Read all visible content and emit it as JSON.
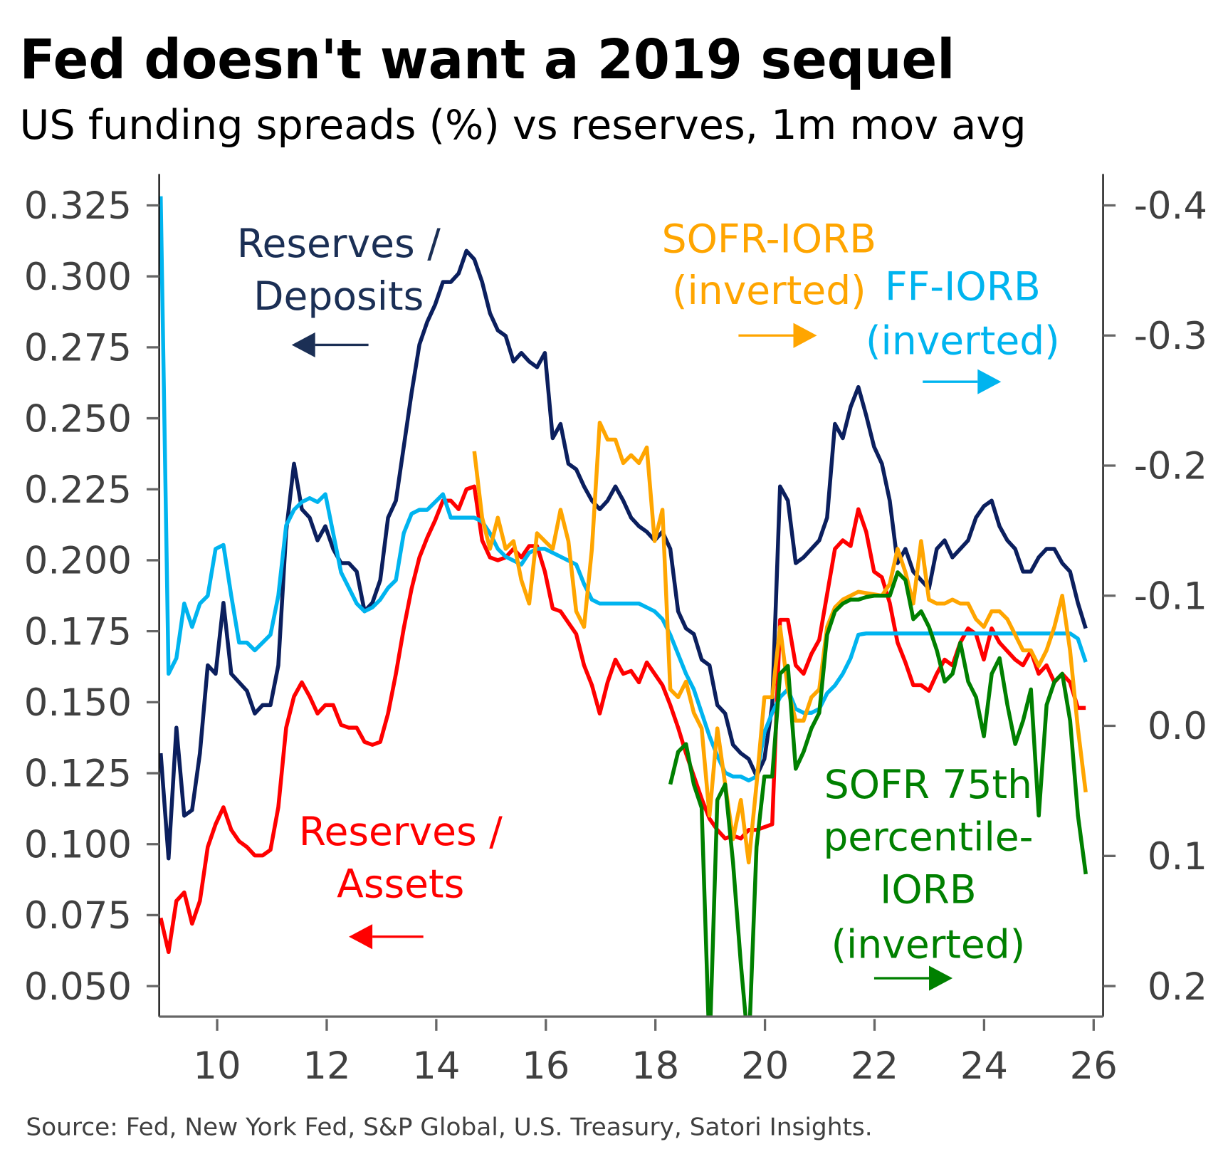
{
  "chart_data": {
    "type": "line",
    "title": "Fed doesn't want a 2019 sequel",
    "subtitle": "US funding spreads (%) vs reserves, 1m mov avg",
    "source": "Source: Fed, New York Fed, S&P Global, U.S. Treasury, Satori Insights.",
    "x_axis": {
      "ticks": [
        10,
        12,
        14,
        16,
        18,
        20,
        22,
        24,
        26
      ],
      "tick_labels": [
        "10",
        "12",
        "14",
        "16",
        "18",
        "20",
        "22",
        "24",
        "26"
      ],
      "range": [
        8.94,
        26.17
      ]
    },
    "left_axis": {
      "ticks": [
        0.325,
        0.3,
        0.275,
        0.25,
        0.225,
        0.2,
        0.175,
        0.15,
        0.125,
        0.1,
        0.075,
        0.05
      ],
      "tick_labels": [
        "0.325",
        "0.300",
        "0.275",
        "0.250",
        "0.225",
        "0.200",
        "0.175",
        "0.150",
        "0.125",
        "0.100",
        "0.075",
        "0.050"
      ],
      "range": [
        0.039,
        0.336
      ]
    },
    "right_axis": {
      "inverted": true,
      "ticks": [
        -0.4,
        -0.3,
        -0.2,
        -0.1,
        0.0,
        0.1,
        0.2
      ],
      "tick_labels": [
        "-0.4",
        "-0.3",
        "-0.2",
        "-0.1",
        "0.0",
        "0.1",
        "0.2"
      ],
      "range": [
        -0.424,
        0.223
      ]
    },
    "grid": false,
    "series": [
      {
        "name": "Reserves / Deposits",
        "axis": "left",
        "color": "#0b1f5e",
        "x_start": 8.97,
        "x_step": 0.1431,
        "values": [
          0.132,
          0.095,
          0.141,
          0.11,
          0.112,
          0.132,
          0.163,
          0.16,
          0.185,
          0.16,
          0.157,
          0.154,
          0.146,
          0.149,
          0.149,
          0.163,
          0.21,
          0.234,
          0.218,
          0.215,
          0.207,
          0.212,
          0.204,
          0.199,
          0.199,
          0.196,
          0.182,
          0.185,
          0.193,
          0.215,
          0.221,
          0.24,
          0.259,
          0.276,
          0.284,
          0.29,
          0.298,
          0.298,
          0.301,
          0.309,
          0.306,
          0.298,
          0.287,
          0.281,
          0.279,
          0.27,
          0.273,
          0.27,
          0.268,
          0.273,
          0.243,
          0.248,
          0.234,
          0.232,
          0.226,
          0.221,
          0.218,
          0.221,
          0.226,
          0.221,
          0.215,
          0.212,
          0.21,
          0.207,
          0.21,
          0.204,
          0.182,
          0.176,
          0.174,
          0.165,
          0.163,
          0.149,
          0.146,
          0.135,
          0.132,
          0.13,
          0.124,
          0.13,
          0.149,
          0.226,
          0.221,
          0.199,
          0.201,
          0.204,
          0.207,
          0.215,
          0.248,
          0.243,
          0.254,
          0.261,
          0.251,
          0.24,
          0.234,
          0.221,
          0.199,
          0.204,
          0.196,
          0.193,
          0.19,
          0.204,
          0.207,
          0.201,
          0.204,
          0.207,
          0.215,
          0.219,
          0.221,
          0.212,
          0.207,
          0.204,
          0.196,
          0.196,
          0.201,
          0.204,
          0.204,
          0.199,
          0.196,
          0.185,
          0.176
        ]
      },
      {
        "name": "Reserves / Assets",
        "axis": "left",
        "color": "#ff0000",
        "x_start": 8.97,
        "x_step": 0.1431,
        "values": [
          0.074,
          0.062,
          0.08,
          0.083,
          0.072,
          0.08,
          0.099,
          0.107,
          0.113,
          0.105,
          0.101,
          0.099,
          0.096,
          0.096,
          0.098,
          0.113,
          0.141,
          0.152,
          0.157,
          0.152,
          0.146,
          0.149,
          0.149,
          0.142,
          0.141,
          0.141,
          0.136,
          0.135,
          0.136,
          0.146,
          0.16,
          0.176,
          0.19,
          0.201,
          0.208,
          0.214,
          0.221,
          0.221,
          0.218,
          0.225,
          0.226,
          0.207,
          0.201,
          0.2,
          0.201,
          0.204,
          0.201,
          0.205,
          0.205,
          0.196,
          0.183,
          0.182,
          0.178,
          0.174,
          0.163,
          0.156,
          0.146,
          0.157,
          0.165,
          0.16,
          0.161,
          0.157,
          0.164,
          0.16,
          0.156,
          0.149,
          0.141,
          0.132,
          0.124,
          0.116,
          0.109,
          0.105,
          0.102,
          0.103,
          0.102,
          0.105,
          0.105,
          0.106,
          0.107,
          0.179,
          0.179,
          0.163,
          0.16,
          0.167,
          0.172,
          0.188,
          0.204,
          0.207,
          0.205,
          0.218,
          0.21,
          0.196,
          0.194,
          0.185,
          0.171,
          0.164,
          0.156,
          0.156,
          0.154,
          0.16,
          0.165,
          0.163,
          0.171,
          0.176,
          0.174,
          0.165,
          0.176,
          0.171,
          0.168,
          0.165,
          0.163,
          0.168,
          0.16,
          0.163,
          0.157,
          0.16,
          0.157,
          0.148,
          0.148
        ]
      },
      {
        "name": "FF-IORB (inverted)",
        "axis": "right",
        "color": "#00b4ef",
        "x_start": 8.97,
        "x_step": 0.1431,
        "values": [
          -0.407,
          -0.04,
          -0.052,
          -0.094,
          -0.076,
          -0.094,
          -0.1,
          -0.136,
          -0.139,
          -0.1,
          -0.064,
          -0.064,
          -0.058,
          -0.064,
          -0.07,
          -0.1,
          -0.154,
          -0.166,
          -0.172,
          -0.175,
          -0.172,
          -0.178,
          -0.148,
          -0.118,
          -0.106,
          -0.094,
          -0.088,
          -0.091,
          -0.097,
          -0.106,
          -0.112,
          -0.148,
          -0.163,
          -0.166,
          -0.166,
          -0.172,
          -0.178,
          -0.16,
          -0.16,
          -0.16,
          -0.16,
          -0.157,
          -0.148,
          -0.136,
          -0.13,
          -0.127,
          -0.124,
          -0.133,
          -0.136,
          -0.136,
          -0.133,
          -0.13,
          -0.127,
          -0.124,
          -0.109,
          -0.097,
          -0.094,
          -0.094,
          -0.094,
          -0.094,
          -0.094,
          -0.094,
          -0.091,
          -0.088,
          -0.082,
          -0.07,
          -0.055,
          -0.04,
          -0.028,
          -0.01,
          0.008,
          0.023,
          0.036,
          0.039,
          0.039,
          0.042,
          0.039,
          0.005,
          -0.01,
          -0.022,
          -0.028,
          -0.013,
          -0.01,
          -0.01,
          -0.013,
          -0.025,
          -0.031,
          -0.04,
          -0.052,
          -0.07,
          -0.071,
          -0.071,
          -0.071,
          -0.071,
          -0.071,
          -0.071,
          -0.071,
          -0.071,
          -0.071,
          -0.071,
          -0.071,
          -0.071,
          -0.071,
          -0.071,
          -0.071,
          -0.071,
          -0.071,
          -0.071,
          -0.071,
          -0.071,
          -0.071,
          -0.071,
          -0.071,
          -0.071,
          -0.071,
          -0.071,
          -0.071,
          -0.067,
          -0.049
        ]
      },
      {
        "name": "SOFR-IORB (inverted)",
        "axis": "right",
        "color": "#ffa500",
        "x_start": 14.694,
        "x_step": 0.1431,
        "values": [
          -0.211,
          -0.16,
          -0.136,
          -0.16,
          -0.136,
          -0.142,
          -0.112,
          -0.094,
          -0.148,
          -0.142,
          -0.136,
          -0.166,
          -0.142,
          -0.088,
          -0.076,
          -0.136,
          -0.233,
          -0.22,
          -0.22,
          -0.202,
          -0.208,
          -0.202,
          -0.214,
          -0.142,
          -0.166,
          -0.028,
          -0.022,
          -0.034,
          -0.01,
          0.002,
          0.069,
          0.002,
          0.045,
          0.087,
          0.057,
          0.105,
          0.045,
          -0.022,
          -0.022,
          -0.076,
          -0.028,
          -0.004,
          -0.004,
          -0.022,
          -0.028,
          -0.076,
          -0.091,
          -0.097,
          -0.1,
          -0.103,
          -0.102,
          -0.101,
          -0.1,
          -0.109,
          -0.136,
          -0.118,
          -0.094,
          -0.142,
          -0.097,
          -0.094,
          -0.094,
          -0.097,
          -0.094,
          -0.094,
          -0.082,
          -0.076,
          -0.088,
          -0.088,
          -0.082,
          -0.07,
          -0.058,
          -0.058,
          -0.046,
          -0.058,
          -0.076,
          -0.1,
          -0.058,
          0.002,
          0.051
        ]
      },
      {
        "name": "SOFR 75th percentile-IORB (inverted)",
        "axis": "right",
        "color": "#008000",
        "x_start": 18.272,
        "x_step": 0.1431,
        "values": [
          0.045,
          0.02,
          0.014,
          0.045,
          0.063,
          0.25,
          0.057,
          0.045,
          0.105,
          0.183,
          0.25,
          0.093,
          0.039,
          0.039,
          -0.04,
          -0.046,
          0.033,
          0.02,
          0.002,
          -0.01,
          -0.07,
          -0.088,
          -0.094,
          -0.097,
          -0.097,
          -0.099,
          -0.1,
          -0.1,
          -0.1,
          -0.118,
          -0.112,
          -0.082,
          -0.088,
          -0.076,
          -0.058,
          -0.034,
          -0.04,
          -0.064,
          -0.034,
          -0.022,
          0.008,
          -0.04,
          -0.052,
          -0.016,
          0.014,
          -0.004,
          -0.028,
          0.069,
          -0.016,
          -0.034,
          -0.04,
          -0.004,
          0.069,
          0.114
        ]
      }
    ],
    "annotations": [
      {
        "lines": [
          "Reserves /",
          "Deposits"
        ],
        "arrow": "left",
        "color": "#1b2f55",
        "series": "Reserves / Deposits"
      },
      {
        "lines": [
          "SOFR-IORB",
          "(inverted)"
        ],
        "arrow": "right",
        "color": "#ffa500",
        "series": "SOFR-IORB (inverted)"
      },
      {
        "lines": [
          "FF-IORB",
          "(inverted)"
        ],
        "arrow": "right",
        "color": "#00b4ef",
        "series": "FF-IORB (inverted)"
      },
      {
        "lines": [
          "Reserves /",
          "Assets"
        ],
        "arrow": "left",
        "color": "#ff0000",
        "series": "Reserves / Assets"
      },
      {
        "lines": [
          "SOFR 75th",
          "percentile-",
          "IORB",
          "(inverted)"
        ],
        "arrow": "right",
        "color": "#008000",
        "series": "SOFR 75th percentile-IORB (inverted)"
      }
    ]
  }
}
